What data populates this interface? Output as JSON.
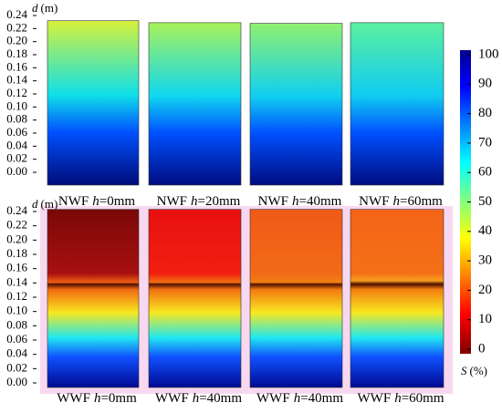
{
  "chart_data": [
    {
      "type": "heatmap",
      "y_label": {
        "var": "d",
        "unit": "(m)"
      },
      "ylim": [
        0,
        0.24
      ],
      "yticks": [
        {
          "value": 0,
          "label": "0.00"
        },
        0.02,
        0.04,
        0.06,
        0.08,
        {
          "value": 0.1,
          "label": "0.10"
        },
        0.12,
        0.14,
        0.16,
        0.18,
        {
          "value": 0.2,
          "label": "0.20"
        },
        0.22,
        0.24
      ],
      "panels": [
        {
          "group": "NWF",
          "var": "h",
          "setting": "=0mm",
          "top": 0.232
        },
        {
          "group": "NWF",
          "var": "h",
          "setting": "=20mm",
          "top": 0.229
        },
        {
          "group": "NWF",
          "var": "h",
          "setting": "=40mm",
          "top": 0.228
        },
        {
          "group": "NWF",
          "var": "h",
          "setting": "=60mm",
          "top": 0.229
        }
      ]
    },
    {
      "type": "heatmap",
      "y_label": {
        "var": "d",
        "unit": "(m)"
      },
      "ylim": [
        0,
        0.24
      ],
      "yticks": [
        {
          "value": 0,
          "label": "0.00"
        },
        0.02,
        0.04,
        0.06,
        0.08,
        {
          "value": 0.1,
          "label": "0.10"
        },
        0.12,
        0.14,
        0.16,
        0.18,
        {
          "value": 0.2,
          "label": "0.20"
        },
        0.22,
        0.24
      ],
      "panels": [
        {
          "group": "WWF",
          "var": "h",
          "setting": "=0mm",
          "top": 0.243
        },
        {
          "group": "WWF",
          "var": "h",
          "setting": "=40mm",
          "top": 0.243
        },
        {
          "group": "WWF",
          "var": "h",
          "setting": "=40mm",
          "top": 0.243
        },
        {
          "group": "WWF",
          "var": "h",
          "setting": "=60mm",
          "top": 0.243
        }
      ]
    }
  ],
  "colorbar": {
    "label": {
      "var": "S",
      "unit": "(%)"
    },
    "lim": [
      0,
      100
    ],
    "ticks": [
      0,
      10,
      20,
      30,
      40,
      50,
      60,
      70,
      80,
      90,
      100
    ]
  }
}
